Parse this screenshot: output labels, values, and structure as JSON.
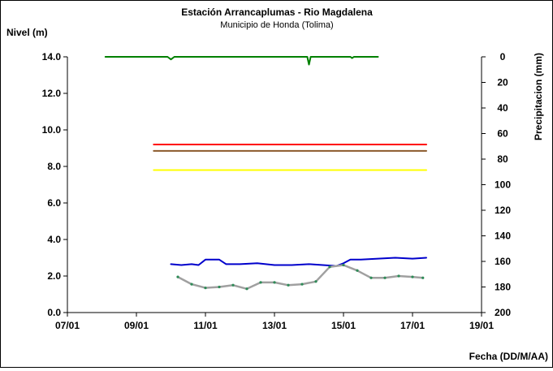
{
  "chart_data": {
    "type": "line",
    "title": "Estación Arrancaplumas - Rio Magdalena",
    "subtitle": "Municipio de Honda (Tolima)",
    "ylabel": "Nivel (m)",
    "y2label": "Precipitacion (mm)",
    "xlabel": "Fecha (DD/M/AA)",
    "x_ticks": [
      "07/01",
      "09/01",
      "11/01",
      "13/01",
      "15/01",
      "17/01",
      "19/01"
    ],
    "y_ticks": [
      "0.0",
      "2.0",
      "4.0",
      "6.0",
      "8.0",
      "10.0",
      "12.0",
      "14.0"
    ],
    "y2_ticks": [
      "0",
      "20",
      "40",
      "60",
      "80",
      "100",
      "120",
      "140",
      "160",
      "180",
      "200"
    ],
    "xlim_days": [
      7,
      19
    ],
    "ylim": [
      0,
      14
    ],
    "y2lim": [
      0,
      200
    ],
    "y2_inverted": true,
    "grid": false,
    "legend": "none",
    "series": [
      {
        "axis": "left",
        "color": "#ff0000",
        "x": [
          9.5,
          17.4
        ],
        "values": [
          9.2,
          9.2
        ]
      },
      {
        "axis": "left",
        "color": "#8b5a2b",
        "x": [
          9.5,
          17.4
        ],
        "values": [
          8.85,
          8.85
        ]
      },
      {
        "axis": "left",
        "color": "#ffff00",
        "x": [
          9.5,
          17.4
        ],
        "values": [
          7.8,
          7.8
        ]
      },
      {
        "axis": "left",
        "color": "#0000cc",
        "x": [
          10.0,
          10.3,
          10.6,
          10.8,
          11.0,
          11.4,
          11.6,
          12.0,
          12.5,
          13.0,
          13.5,
          14.0,
          14.4,
          14.8,
          15.0,
          15.2,
          15.5,
          16.0,
          16.5,
          17.0,
          17.4
        ],
        "values": [
          2.65,
          2.6,
          2.65,
          2.6,
          2.9,
          2.9,
          2.65,
          2.65,
          2.7,
          2.6,
          2.6,
          2.65,
          2.6,
          2.55,
          2.7,
          2.9,
          2.9,
          2.95,
          3.0,
          2.95,
          3.0
        ]
      },
      {
        "axis": "left",
        "color": "#a0a0a0",
        "x": [
          10.2,
          10.6,
          11.0,
          11.4,
          11.8,
          12.2,
          12.6,
          13.0,
          13.4,
          13.8,
          14.2,
          14.6,
          15.0,
          15.4,
          15.8,
          16.2,
          16.6,
          17.0,
          17.3
        ],
        "values": [
          1.95,
          1.55,
          1.35,
          1.4,
          1.5,
          1.3,
          1.65,
          1.65,
          1.5,
          1.55,
          1.7,
          2.5,
          2.6,
          2.3,
          1.9,
          1.9,
          2.0,
          1.95,
          1.9
        ]
      },
      {
        "axis": "right",
        "color": "#008000",
        "x": [
          8.1,
          9.0,
          9.9,
          10.0,
          10.1,
          11.0,
          12.0,
          13.0,
          13.95,
          14.0,
          14.05,
          15.0,
          15.2,
          15.25,
          15.3,
          16.0
        ],
        "values": [
          0,
          0,
          0,
          2,
          0,
          0,
          0,
          0,
          0,
          6,
          0,
          0,
          0,
          1,
          0,
          0
        ]
      }
    ]
  }
}
